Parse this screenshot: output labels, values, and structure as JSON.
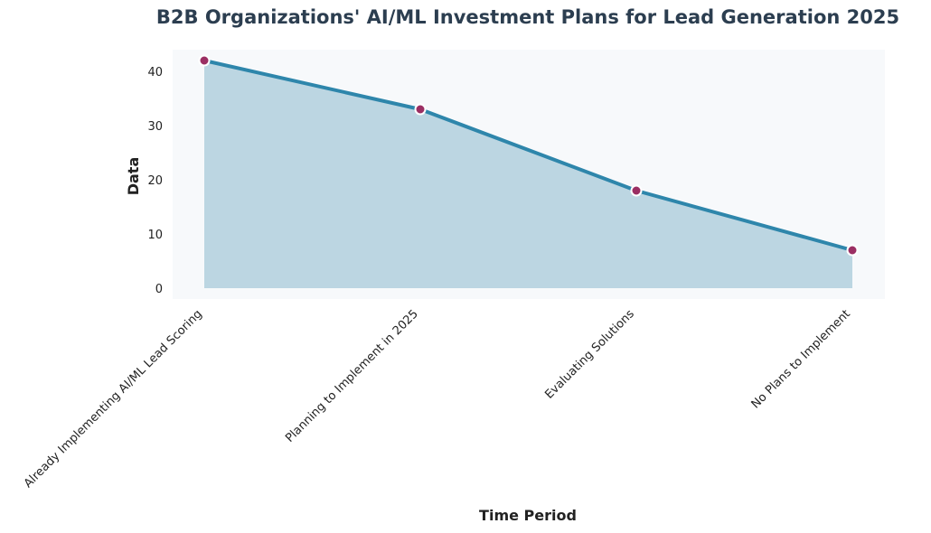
{
  "chart_data": {
    "type": "area",
    "title": "B2B Organizations' AI/ML Investment Plans for Lead Generation 2025",
    "xlabel": "Time Period",
    "ylabel": "Data",
    "categories": [
      "Already Implementing AI/ML Lead Scoring",
      "Planning to Implement in 2025",
      "Evaluating Solutions",
      "No Plans to Implement"
    ],
    "values": [
      42,
      33,
      18,
      7
    ],
    "ylim": [
      -2,
      44
    ],
    "yticks": [
      0,
      10,
      20,
      30,
      40
    ],
    "grid": false,
    "legend": "none",
    "colors": {
      "line": "#2e86ab",
      "fill": "#bcd6e2",
      "marker": "#9b2f63",
      "marker_edge": "#ffffff",
      "plot_background": "#f7f9fb",
      "title": "#2c3e50"
    }
  }
}
